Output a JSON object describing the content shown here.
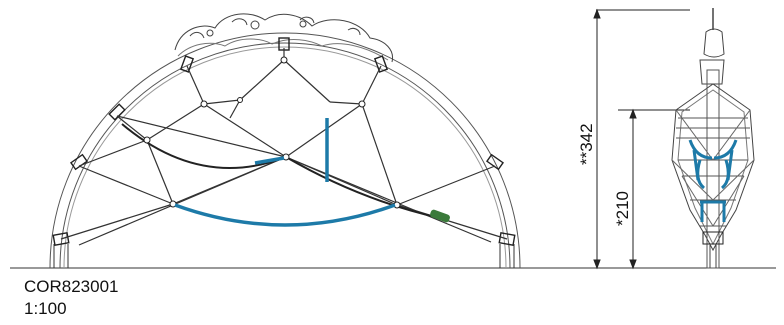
{
  "product_code": "COR823001",
  "scale": "1:100",
  "dimensions": {
    "total_height": "**342",
    "free_fall_height": "*210"
  }
}
